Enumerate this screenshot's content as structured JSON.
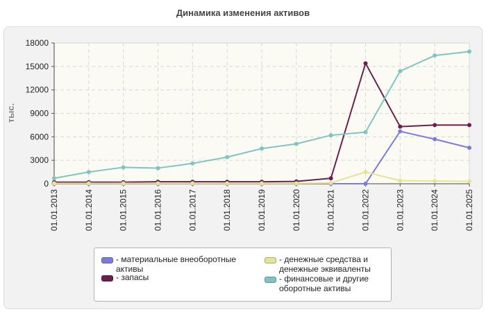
{
  "chart_data": {
    "type": "line",
    "title": "Динамика изменения активов",
    "ylabel": "тыс.",
    "xlabel": "",
    "ylim": [
      0,
      18000
    ],
    "yticks": [
      0,
      3000,
      6000,
      9000,
      12000,
      15000,
      18000
    ],
    "grid": true,
    "legend_position": "bottom",
    "categories": [
      "01.01.2013",
      "01.01.2014",
      "01.01.2015",
      "01.01.2016",
      "01.01.2017",
      "01.01.2018",
      "01.01.2019",
      "01.01.2020",
      "01.01.2021",
      "01.01.2022",
      "01.01.2023",
      "01.01.2024",
      "01.01.2025"
    ],
    "series": [
      {
        "name": "- материальные внеоборотные активы",
        "color": "#7b7bdc",
        "values": [
          0,
          0,
          0,
          0,
          0,
          0,
          0,
          0,
          0,
          0,
          6700,
          5700,
          4600
        ]
      },
      {
        "name": "- запасы",
        "color": "#6b1f4f",
        "values": [
          200,
          200,
          200,
          250,
          250,
          250,
          250,
          300,
          700,
          15400,
          7300,
          7500,
          7500
        ]
      },
      {
        "name": "- денежные средства и денежные эквиваленты",
        "color": "#e4e494",
        "values": [
          50,
          50,
          50,
          50,
          50,
          50,
          50,
          50,
          100,
          1500,
          400,
          350,
          300
        ]
      },
      {
        "name": "- финансовые и другие оборотные активы",
        "color": "#7fc3c3",
        "values": [
          700,
          1500,
          2100,
          2000,
          2600,
          3400,
          4500,
          5100,
          6200,
          6600,
          14400,
          16400,
          16900
        ]
      }
    ]
  }
}
